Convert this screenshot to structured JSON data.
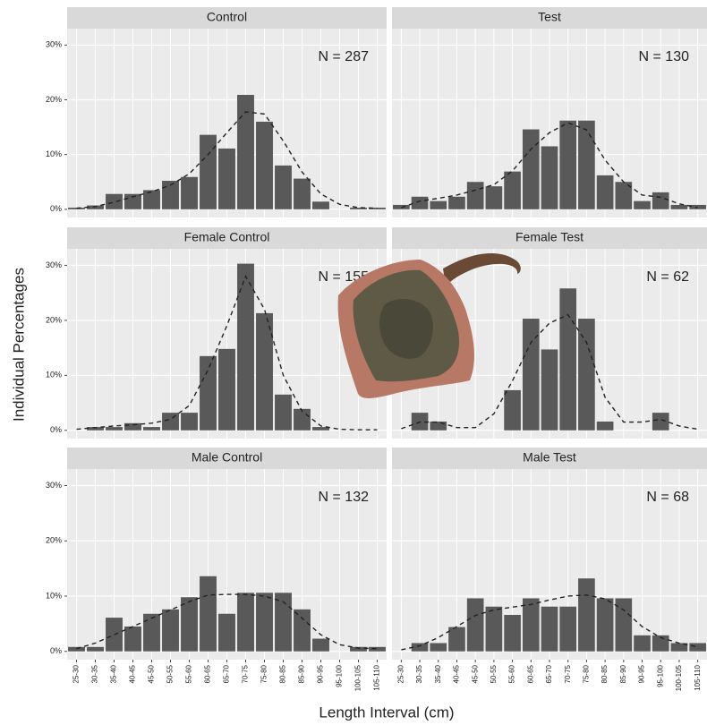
{
  "chart_data": {
    "type": "bar",
    "color": "#595959",
    "trend_color": "#222222",
    "grid": true,
    "xlabel": "Length Interval (cm)",
    "ylabel": "Individual Percentages",
    "categories": [
      "25-30",
      "30-35",
      "35-40",
      "40-45",
      "45-50",
      "50-55",
      "55-60",
      "60-65",
      "65-70",
      "70-75",
      "75-80",
      "80-85",
      "85-90",
      "90-95",
      "95-100",
      "100-105",
      "105-110"
    ],
    "ylim": [
      -1.5,
      33
    ],
    "yticks": [
      {
        "value": 0,
        "label": "0%"
      },
      {
        "value": 10,
        "label": "10%"
      },
      {
        "value": 20,
        "label": "20%"
      },
      {
        "value": 30,
        "label": "30%"
      }
    ],
    "panels": [
      {
        "title": "Control",
        "annotation": "N = 287",
        "values": [
          0.3,
          0.7,
          2.8,
          2.8,
          3.5,
          5.2,
          5.9,
          13.6,
          11.1,
          20.9,
          16.0,
          8.0,
          5.6,
          1.4,
          0,
          0.3,
          0.3
        ],
        "trend": [
          0.2,
          0.5,
          1.3,
          2.3,
          3.2,
          4.4,
          6.5,
          10,
          14,
          17.8,
          17.4,
          12.5,
          6.8,
          2.8,
          0.9,
          0.3,
          0.2
        ]
      },
      {
        "title": "Test",
        "annotation": "N = 130",
        "values": [
          0.8,
          2.3,
          1.5,
          2.3,
          5.0,
          4.2,
          6.9,
          14.6,
          11.5,
          16.2,
          16.2,
          6.2,
          5.0,
          1.5,
          3.1,
          0.8,
          0.8
        ],
        "trend": [
          0.3,
          1.5,
          2,
          2.6,
          3.5,
          4.5,
          7,
          11,
          14,
          15.8,
          14.5,
          9,
          5,
          2.6,
          2.2,
          1,
          0.3
        ]
      },
      {
        "title": "Female Control",
        "annotation": "N = 155",
        "values": [
          0,
          0.6,
          0.6,
          1.3,
          0.6,
          3.2,
          3.2,
          13.5,
          14.8,
          30.3,
          21.3,
          6.5,
          3.9,
          0.6,
          0,
          0,
          0
        ],
        "trend": [
          0.2,
          0.5,
          0.8,
          1,
          1.3,
          2,
          4.5,
          11,
          19,
          28,
          22,
          10,
          3.5,
          0.8,
          0.2,
          0.1,
          0.1
        ]
      },
      {
        "title": "Female Test",
        "annotation": "N = 62",
        "values": [
          0,
          3.2,
          1.6,
          0,
          0,
          0,
          7.3,
          20.3,
          14.7,
          25.8,
          20.3,
          1.6,
          0,
          0,
          3.2,
          0,
          0
        ],
        "trend": [
          0.3,
          1.5,
          1.5,
          0.5,
          0.5,
          3,
          9,
          16,
          19.5,
          21,
          16,
          6,
          1.5,
          1.5,
          2,
          0.8,
          0.2
        ]
      },
      {
        "title": "Male Control",
        "annotation": "N = 132",
        "values": [
          0.8,
          0.8,
          6.1,
          4.5,
          6.8,
          7.6,
          9.8,
          13.6,
          6.8,
          10.6,
          10.6,
          10.6,
          7.6,
          2.3,
          0,
          0.8,
          0.8
        ],
        "trend": [
          0.5,
          1.5,
          3,
          4.5,
          6,
          7.5,
          9,
          10.2,
          10.3,
          10.3,
          10,
          9,
          6,
          3,
          1.2,
          0.6,
          0.5
        ]
      },
      {
        "title": "Male Test",
        "annotation": "N = 68",
        "values": [
          0,
          1.5,
          1.5,
          4.4,
          9.6,
          8.1,
          6.6,
          9.6,
          8.1,
          8.1,
          13.2,
          9.6,
          9.6,
          2.9,
          2.9,
          1.5,
          1.5
        ],
        "trend": [
          0.3,
          1,
          2.5,
          4.5,
          6.5,
          7.5,
          8,
          8.5,
          9.3,
          10,
          10.2,
          9.5,
          7.5,
          4.5,
          2.5,
          1.5,
          0.8
        ]
      }
    ]
  }
}
